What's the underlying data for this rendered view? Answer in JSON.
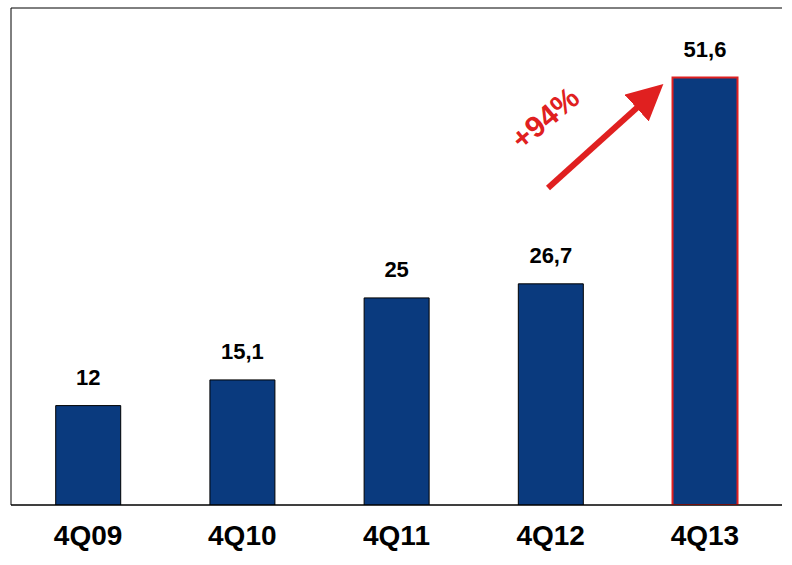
{
  "chart_data": {
    "type": "bar",
    "categories": [
      "4Q09",
      "4Q10",
      "4Q11",
      "4Q12",
      "4Q13"
    ],
    "values": [
      12,
      15.1,
      25,
      26.7,
      51.6
    ],
    "value_labels": [
      "12",
      "15,1",
      "25",
      "26,7",
      "51,6"
    ],
    "data_labels": true,
    "color": "#0a3a7e",
    "ylim": [
      0,
      60
    ],
    "yticks": [
      0,
      10,
      20,
      30,
      40,
      50,
      60
    ],
    "grid": true,
    "tick_labels": "x",
    "annotation": "+94%"
  }
}
